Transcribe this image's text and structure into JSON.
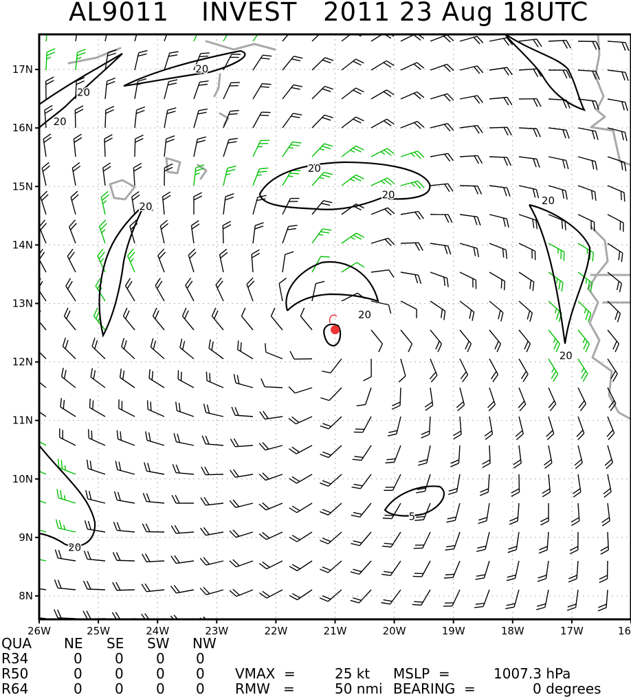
{
  "title": {
    "storm_id": "AL9011",
    "storm_name": "INVEST",
    "datetime": "2011 23 Aug 18UTC"
  },
  "map": {
    "lon_range": [
      -26,
      -16
    ],
    "lat_range": [
      7.6,
      17.6
    ],
    "lon_labels": [
      "26W",
      "25W",
      "24W",
      "23W",
      "22W",
      "21W",
      "20W",
      "19W",
      "18W",
      "17W",
      "16"
    ],
    "lat_labels": [
      "17N",
      "16N",
      "15N",
      "14N",
      "13N",
      "12N",
      "11N",
      "10N",
      "9N",
      "8N"
    ],
    "storm_center": {
      "lon": -21.0,
      "lat": 12.55
    },
    "contour_labels": [
      {
        "id": "c1",
        "text": "20",
        "lon": -25.65,
        "lat": 16.1
      },
      {
        "id": "c2",
        "text": "20",
        "lon": -25.25,
        "lat": 16.6
      },
      {
        "id": "c3",
        "text": "20",
        "lon": -23.25,
        "lat": 17.0
      },
      {
        "id": "c4",
        "text": "20",
        "lon": -21.35,
        "lat": 15.3
      },
      {
        "id": "c5",
        "text": "20",
        "lon": -20.1,
        "lat": 14.85
      },
      {
        "id": "c6",
        "text": "20",
        "lon": -24.2,
        "lat": 14.65
      },
      {
        "id": "c7",
        "text": "20",
        "lon": -20.5,
        "lat": 12.8
      },
      {
        "id": "c8",
        "text": "20",
        "lon": -17.4,
        "lat": 14.75
      },
      {
        "id": "c9",
        "text": "20",
        "lon": -17.1,
        "lat": 12.1
      },
      {
        "id": "c10",
        "text": "5",
        "lon": -19.7,
        "lat": 9.35
      },
      {
        "id": "c11",
        "text": "20",
        "lon": -25.4,
        "lat": 8.82
      }
    ],
    "colors": {
      "barb": "#000000",
      "barb_strong": "#00c000",
      "contour": "#000000",
      "coast": "#a8a8a8",
      "center": "#ee3333",
      "grid": "#b0b0b0"
    }
  },
  "stats": {
    "header": [
      "QUA",
      "NE",
      "SE",
      "SW",
      "NW"
    ],
    "rows": [
      {
        "label": "R34",
        "values": [
          "0",
          "0",
          "0",
          "0"
        ]
      },
      {
        "label": "R50",
        "values": [
          "0",
          "0",
          "0",
          "0"
        ]
      },
      {
        "label": "R64",
        "values": [
          "0",
          "0",
          "0",
          "0"
        ]
      }
    ],
    "vmax_label": "VMAX  =",
    "vmax_value": "25 kt",
    "mslp_label": "MSLP  =",
    "mslp_value": "1007.3 hPa",
    "rmw_label": "RMW   =",
    "rmw_value": "50 nmi",
    "bearing_label": "BEARING  =",
    "bearing_value": "0 degrees"
  }
}
